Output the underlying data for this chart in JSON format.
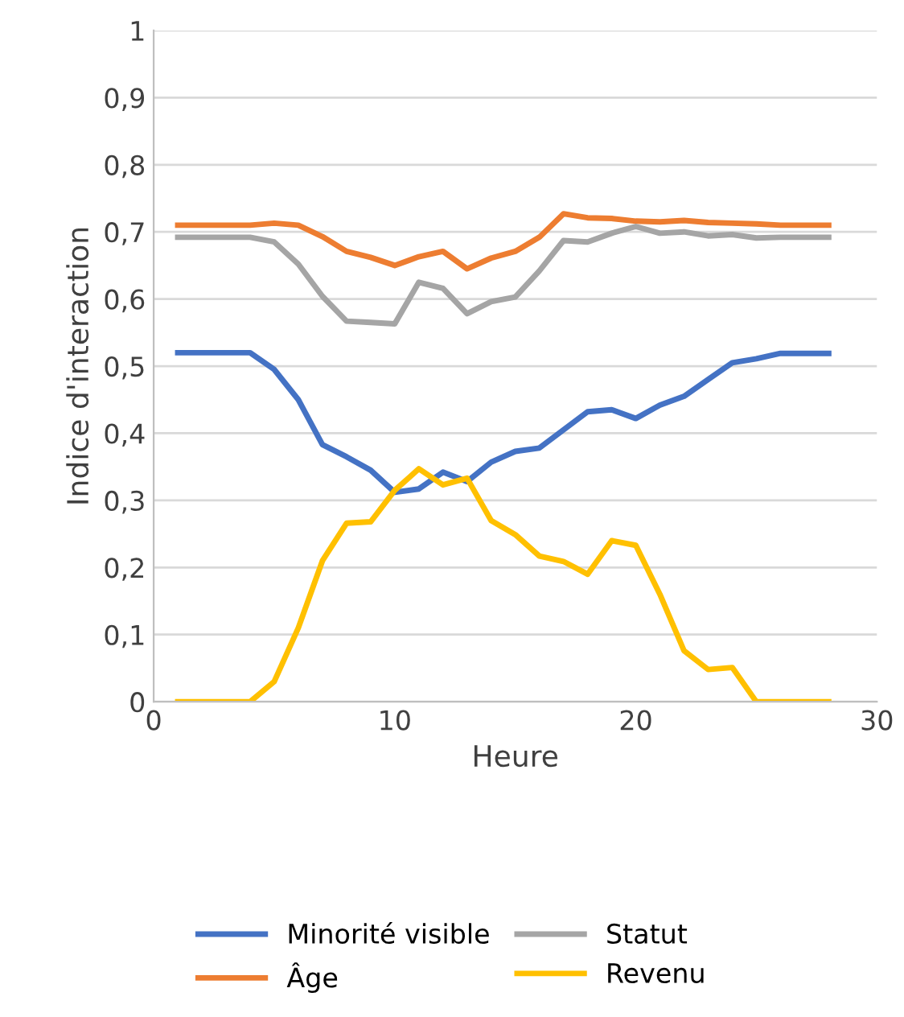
{
  "chart_data": {
    "type": "line",
    "xlabel": "Heure",
    "ylabel": "Indice d'interaction",
    "x": [
      1,
      2,
      3,
      4,
      5,
      6,
      7,
      8,
      9,
      10,
      11,
      12,
      13,
      14,
      15,
      16,
      17,
      18,
      19,
      20,
      21,
      22,
      23,
      24,
      25,
      26,
      27,
      28
    ],
    "series": [
      {
        "name": "Minorité visible",
        "color": "#4472c4",
        "values": [
          0.52,
          0.52,
          0.52,
          0.52,
          0.495,
          0.45,
          0.383,
          0.365,
          0.345,
          0.312,
          0.317,
          0.342,
          0.328,
          0.357,
          0.373,
          0.378,
          0.405,
          0.432,
          0.435,
          0.422,
          0.442,
          0.455,
          0.48,
          0.505,
          0.511,
          0.519,
          0.519,
          0.519
        ]
      },
      {
        "name": "Âge",
        "color": "#ed7d31",
        "values": [
          0.71,
          0.71,
          0.71,
          0.71,
          0.713,
          0.71,
          0.693,
          0.671,
          0.662,
          0.65,
          0.663,
          0.671,
          0.645,
          0.661,
          0.671,
          0.692,
          0.727,
          0.721,
          0.72,
          0.716,
          0.715,
          0.717,
          0.714,
          0.713,
          0.712,
          0.71,
          0.71,
          0.71
        ]
      },
      {
        "name": "Statut",
        "color": "#a5a5a5",
        "values": [
          0.692,
          0.692,
          0.692,
          0.692,
          0.685,
          0.652,
          0.604,
          0.567,
          0.565,
          0.563,
          0.625,
          0.616,
          0.578,
          0.596,
          0.603,
          0.642,
          0.687,
          0.685,
          0.698,
          0.708,
          0.698,
          0.7,
          0.694,
          0.696,
          0.691,
          0.692,
          0.692,
          0.692
        ]
      },
      {
        "name": "Revenu",
        "color": "#ffc000",
        "values": [
          0,
          0,
          0,
          0,
          0.03,
          0.11,
          0.21,
          0.266,
          0.268,
          0.315,
          0.347,
          0.323,
          0.333,
          0.27,
          0.249,
          0.217,
          0.209,
          0.19,
          0.24,
          0.233,
          0.16,
          0.076,
          0.048,
          0.051,
          0,
          0,
          0,
          0
        ]
      }
    ],
    "xlim": [
      0,
      30
    ],
    "xticks": [
      0,
      10,
      20,
      30
    ],
    "ylim": [
      0,
      1
    ],
    "yticks": [
      0,
      {
        "value": 0.1,
        "label": "0,1"
      },
      {
        "value": 0.2,
        "label": "0,2"
      },
      {
        "value": 0.3,
        "label": "0,3"
      },
      {
        "value": 0.4,
        "label": "0,4"
      },
      {
        "value": 0.5,
        "label": "0,5"
      },
      {
        "value": 0.6,
        "label": "0,6"
      },
      {
        "value": 0.7,
        "label": "0,7"
      },
      {
        "value": 0.8,
        "label": "0,8"
      },
      {
        "value": 0.9,
        "label": "0,9"
      },
      1
    ],
    "grid": "y",
    "legend": "bottom",
    "line_style": "solid",
    "marker": "none"
  }
}
